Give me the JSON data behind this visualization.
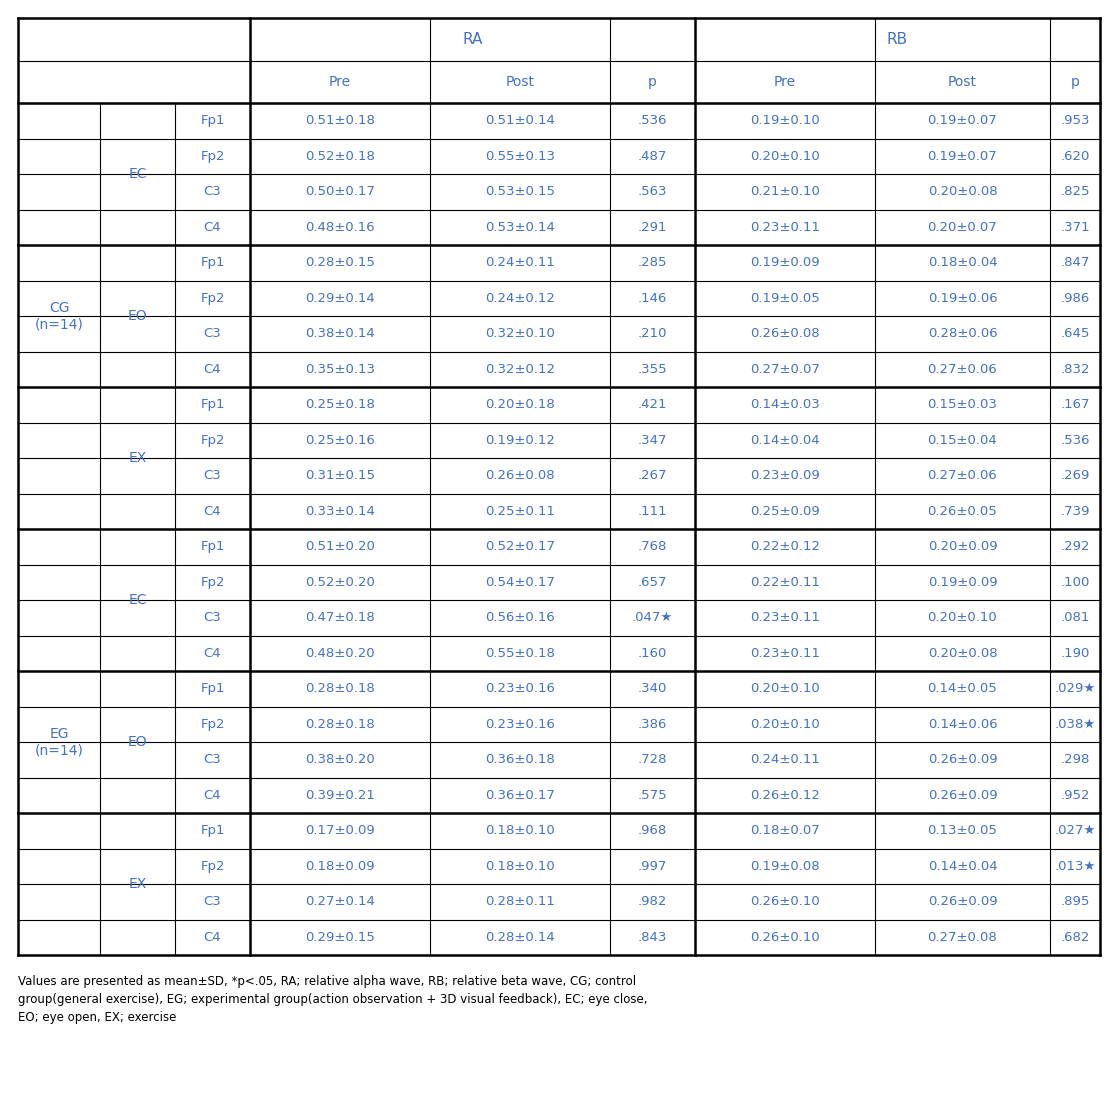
{
  "text_color": "#4472c4",
  "line_color": "#000000",
  "groups": [
    {
      "group": "CG\n(n=14)",
      "subgroups": [
        {
          "subgroup": "EC",
          "rows": [
            {
              "ch": "Fp1",
              "ra_pre": "0.51±0.18",
              "ra_post": "0.51±0.14",
              "ra_p": ".536",
              "rb_pre": "0.19±0.10",
              "rb_post": "0.19±0.07",
              "rb_p": ".953"
            },
            {
              "ch": "Fp2",
              "ra_pre": "0.52±0.18",
              "ra_post": "0.55±0.13",
              "ra_p": ".487",
              "rb_pre": "0.20±0.10",
              "rb_post": "0.19±0.07",
              "rb_p": ".620"
            },
            {
              "ch": "C3",
              "ra_pre": "0.50±0.17",
              "ra_post": "0.53±0.15",
              "ra_p": ".563",
              "rb_pre": "0.21±0.10",
              "rb_post": "0.20±0.08",
              "rb_p": ".825"
            },
            {
              "ch": "C4",
              "ra_pre": "0.48±0.16",
              "ra_post": "0.53±0.14",
              "ra_p": ".291",
              "rb_pre": "0.23±0.11",
              "rb_post": "0.20±0.07",
              "rb_p": ".371"
            }
          ]
        },
        {
          "subgroup": "EO",
          "rows": [
            {
              "ch": "Fp1",
              "ra_pre": "0.28±0.15",
              "ra_post": "0.24±0.11",
              "ra_p": ".285",
              "rb_pre": "0.19±0.09",
              "rb_post": "0.18±0.04",
              "rb_p": ".847"
            },
            {
              "ch": "Fp2",
              "ra_pre": "0.29±0.14",
              "ra_post": "0.24±0.12",
              "ra_p": ".146",
              "rb_pre": "0.19±0.05",
              "rb_post": "0.19±0.06",
              "rb_p": ".986"
            },
            {
              "ch": "C3",
              "ra_pre": "0.38±0.14",
              "ra_post": "0.32±0.10",
              "ra_p": ".210",
              "rb_pre": "0.26±0.08",
              "rb_post": "0.28±0.06",
              "rb_p": ".645"
            },
            {
              "ch": "C4",
              "ra_pre": "0.35±0.13",
              "ra_post": "0.32±0.12",
              "ra_p": ".355",
              "rb_pre": "0.27±0.07",
              "rb_post": "0.27±0.06",
              "rb_p": ".832"
            }
          ]
        },
        {
          "subgroup": "EX",
          "rows": [
            {
              "ch": "Fp1",
              "ra_pre": "0.25±0.18",
              "ra_post": "0.20±0.18",
              "ra_p": ".421",
              "rb_pre": "0.14±0.03",
              "rb_post": "0.15±0.03",
              "rb_p": ".167"
            },
            {
              "ch": "Fp2",
              "ra_pre": "0.25±0.16",
              "ra_post": "0.19±0.12",
              "ra_p": ".347",
              "rb_pre": "0.14±0.04",
              "rb_post": "0.15±0.04",
              "rb_p": ".536"
            },
            {
              "ch": "C3",
              "ra_pre": "0.31±0.15",
              "ra_post": "0.26±0.08",
              "ra_p": ".267",
              "rb_pre": "0.23±0.09",
              "rb_post": "0.27±0.06",
              "rb_p": ".269"
            },
            {
              "ch": "C4",
              "ra_pre": "0.33±0.14",
              "ra_post": "0.25±0.11",
              "ra_p": ".111",
              "rb_pre": "0.25±0.09",
              "rb_post": "0.26±0.05",
              "rb_p": ".739"
            }
          ]
        }
      ]
    },
    {
      "group": "EG\n(n=14)",
      "subgroups": [
        {
          "subgroup": "EC",
          "rows": [
            {
              "ch": "Fp1",
              "ra_pre": "0.51±0.20",
              "ra_post": "0.52±0.17",
              "ra_p": ".768",
              "rb_pre": "0.22±0.12",
              "rb_post": "0.20±0.09",
              "rb_p": ".292"
            },
            {
              "ch": "Fp2",
              "ra_pre": "0.52±0.20",
              "ra_post": "0.54±0.17",
              "ra_p": ".657",
              "rb_pre": "0.22±0.11",
              "rb_post": "0.19±0.09",
              "rb_p": ".100"
            },
            {
              "ch": "C3",
              "ra_pre": "0.47±0.18",
              "ra_post": "0.56±0.16",
              "ra_p": ".047★",
              "rb_pre": "0.23±0.11",
              "rb_post": "0.20±0.10",
              "rb_p": ".081"
            },
            {
              "ch": "C4",
              "ra_pre": "0.48±0.20",
              "ra_post": "0.55±0.18",
              "ra_p": ".160",
              "rb_pre": "0.23±0.11",
              "rb_post": "0.20±0.08",
              "rb_p": ".190"
            }
          ]
        },
        {
          "subgroup": "EO",
          "rows": [
            {
              "ch": "Fp1",
              "ra_pre": "0.28±0.18",
              "ra_post": "0.23±0.16",
              "ra_p": ".340",
              "rb_pre": "0.20±0.10",
              "rb_post": "0.14±0.05",
              "rb_p": ".029★"
            },
            {
              "ch": "Fp2",
              "ra_pre": "0.28±0.18",
              "ra_post": "0.23±0.16",
              "ra_p": ".386",
              "rb_pre": "0.20±0.10",
              "rb_post": "0.14±0.06",
              "rb_p": ".038★"
            },
            {
              "ch": "C3",
              "ra_pre": "0.38±0.20",
              "ra_post": "0.36±0.18",
              "ra_p": ".728",
              "rb_pre": "0.24±0.11",
              "rb_post": "0.26±0.09",
              "rb_p": ".298"
            },
            {
              "ch": "C4",
              "ra_pre": "0.39±0.21",
              "ra_post": "0.36±0.17",
              "ra_p": ".575",
              "rb_pre": "0.26±0.12",
              "rb_post": "0.26±0.09",
              "rb_p": ".952"
            }
          ]
        },
        {
          "subgroup": "EX",
          "rows": [
            {
              "ch": "Fp1",
              "ra_pre": "0.17±0.09",
              "ra_post": "0.18±0.10",
              "ra_p": ".968",
              "rb_pre": "0.18±0.07",
              "rb_post": "0.13±0.05",
              "rb_p": ".027★"
            },
            {
              "ch": "Fp2",
              "ra_pre": "0.18±0.09",
              "ra_post": "0.18±0.10",
              "ra_p": ".997",
              "rb_pre": "0.19±0.08",
              "rb_post": "0.14±0.04",
              "rb_p": ".013★"
            },
            {
              "ch": "C3",
              "ra_pre": "0.27±0.14",
              "ra_post": "0.28±0.11",
              "ra_p": ".982",
              "rb_pre": "0.26±0.10",
              "rb_post": "0.26±0.09",
              "rb_p": ".895"
            },
            {
              "ch": "C4",
              "ra_pre": "0.29±0.15",
              "ra_post": "0.28±0.14",
              "ra_p": ".843",
              "rb_pre": "0.26±0.10",
              "rb_post": "0.27±0.08",
              "rb_p": ".682"
            }
          ]
        }
      ]
    }
  ],
  "footnote_line1": "Values are presented as mean±SD, *p<.05, RA; relative alpha wave, RB; relative beta wave, CG; control",
  "footnote_line2": "group(general exercise), EG; experimental group(action observation + 3D visual feedback), EC; eye close,",
  "footnote_line3": "EO; eye open, EX; exercise"
}
